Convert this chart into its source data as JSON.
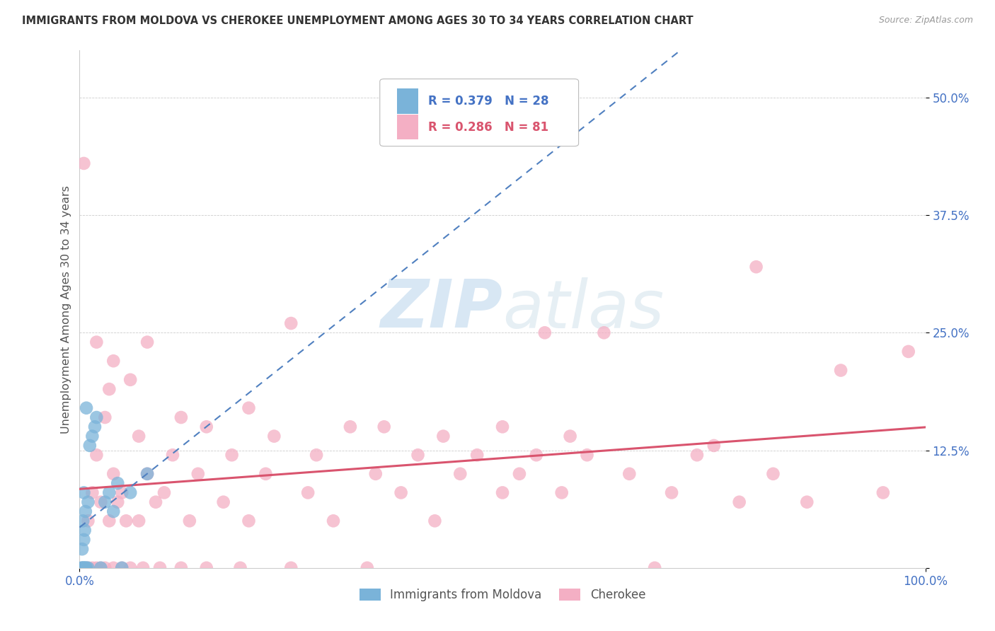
{
  "title": "IMMIGRANTS FROM MOLDOVA VS CHEROKEE UNEMPLOYMENT AMONG AGES 30 TO 34 YEARS CORRELATION CHART",
  "source": "Source: ZipAtlas.com",
  "ylabel": "Unemployment Among Ages 30 to 34 years",
  "xlim": [
    0,
    100
  ],
  "ylim": [
    0,
    55
  ],
  "ytick_vals": [
    0,
    12.5,
    25.0,
    37.5,
    50.0
  ],
  "ytick_labels": [
    "",
    "12.5%",
    "25.0%",
    "37.5%",
    "50.0%"
  ],
  "xtick_vals": [
    0,
    100
  ],
  "xtick_labels": [
    "0.0%",
    "100.0%"
  ],
  "legend_label_moldova": "Immigrants from Moldova",
  "legend_label_cherokee": "Cherokee",
  "moldova_color": "#7ab3d9",
  "cherokee_color": "#f4afc4",
  "trendline_moldova_color": "#5080c0",
  "trendline_cherokee_color": "#d9546e",
  "watermark": "ZIPatlas",
  "moldova_R": 0.379,
  "moldova_N": 28,
  "cherokee_R": 0.286,
  "cherokee_N": 81,
  "moldova_points": [
    [
      0.2,
      0.0
    ],
    [
      0.3,
      0.0
    ],
    [
      0.3,
      2.0
    ],
    [
      0.4,
      0.0
    ],
    [
      0.4,
      5.0
    ],
    [
      0.5,
      0.0
    ],
    [
      0.5,
      3.0
    ],
    [
      0.5,
      8.0
    ],
    [
      0.6,
      0.0
    ],
    [
      0.6,
      4.0
    ],
    [
      0.7,
      0.0
    ],
    [
      0.7,
      6.0
    ],
    [
      0.8,
      0.0
    ],
    [
      0.8,
      17.0
    ],
    [
      1.0,
      0.0
    ],
    [
      1.0,
      7.0
    ],
    [
      1.2,
      13.0
    ],
    [
      1.5,
      14.0
    ],
    [
      1.8,
      15.0
    ],
    [
      2.0,
      16.0
    ],
    [
      2.5,
      0.0
    ],
    [
      3.0,
      7.0
    ],
    [
      3.5,
      8.0
    ],
    [
      4.0,
      6.0
    ],
    [
      4.5,
      9.0
    ],
    [
      5.0,
      0.0
    ],
    [
      6.0,
      8.0
    ],
    [
      8.0,
      10.0
    ]
  ],
  "cherokee_points": [
    [
      0.5,
      43.0
    ],
    [
      1.0,
      0.0
    ],
    [
      1.0,
      5.0
    ],
    [
      1.5,
      0.0
    ],
    [
      1.5,
      8.0
    ],
    [
      2.0,
      0.0
    ],
    [
      2.0,
      12.0
    ],
    [
      2.0,
      24.0
    ],
    [
      2.5,
      0.0
    ],
    [
      2.5,
      7.0
    ],
    [
      3.0,
      0.0
    ],
    [
      3.0,
      16.0
    ],
    [
      3.5,
      5.0
    ],
    [
      3.5,
      19.0
    ],
    [
      4.0,
      0.0
    ],
    [
      4.0,
      10.0
    ],
    [
      4.0,
      22.0
    ],
    [
      4.5,
      7.0
    ],
    [
      5.0,
      0.0
    ],
    [
      5.0,
      8.0
    ],
    [
      5.5,
      5.0
    ],
    [
      6.0,
      0.0
    ],
    [
      6.0,
      20.0
    ],
    [
      7.0,
      5.0
    ],
    [
      7.0,
      14.0
    ],
    [
      7.5,
      0.0
    ],
    [
      8.0,
      10.0
    ],
    [
      8.0,
      24.0
    ],
    [
      9.0,
      7.0
    ],
    [
      9.5,
      0.0
    ],
    [
      10.0,
      8.0
    ],
    [
      11.0,
      12.0
    ],
    [
      12.0,
      0.0
    ],
    [
      12.0,
      16.0
    ],
    [
      13.0,
      5.0
    ],
    [
      14.0,
      10.0
    ],
    [
      15.0,
      0.0
    ],
    [
      15.0,
      15.0
    ],
    [
      17.0,
      7.0
    ],
    [
      18.0,
      12.0
    ],
    [
      19.0,
      0.0
    ],
    [
      20.0,
      5.0
    ],
    [
      20.0,
      17.0
    ],
    [
      22.0,
      10.0
    ],
    [
      23.0,
      14.0
    ],
    [
      25.0,
      0.0
    ],
    [
      25.0,
      26.0
    ],
    [
      27.0,
      8.0
    ],
    [
      28.0,
      12.0
    ],
    [
      30.0,
      5.0
    ],
    [
      32.0,
      15.0
    ],
    [
      34.0,
      0.0
    ],
    [
      35.0,
      10.0
    ],
    [
      36.0,
      15.0
    ],
    [
      38.0,
      8.0
    ],
    [
      40.0,
      12.0
    ],
    [
      42.0,
      5.0
    ],
    [
      43.0,
      14.0
    ],
    [
      45.0,
      10.0
    ],
    [
      47.0,
      12.0
    ],
    [
      50.0,
      8.0
    ],
    [
      50.0,
      15.0
    ],
    [
      52.0,
      10.0
    ],
    [
      54.0,
      12.0
    ],
    [
      55.0,
      25.0
    ],
    [
      57.0,
      8.0
    ],
    [
      58.0,
      14.0
    ],
    [
      60.0,
      12.0
    ],
    [
      62.0,
      25.0
    ],
    [
      65.0,
      10.0
    ],
    [
      68.0,
      0.0
    ],
    [
      70.0,
      8.0
    ],
    [
      73.0,
      12.0
    ],
    [
      75.0,
      13.0
    ],
    [
      78.0,
      7.0
    ],
    [
      80.0,
      32.0
    ],
    [
      82.0,
      10.0
    ],
    [
      86.0,
      7.0
    ],
    [
      90.0,
      21.0
    ],
    [
      95.0,
      8.0
    ],
    [
      98.0,
      23.0
    ]
  ]
}
